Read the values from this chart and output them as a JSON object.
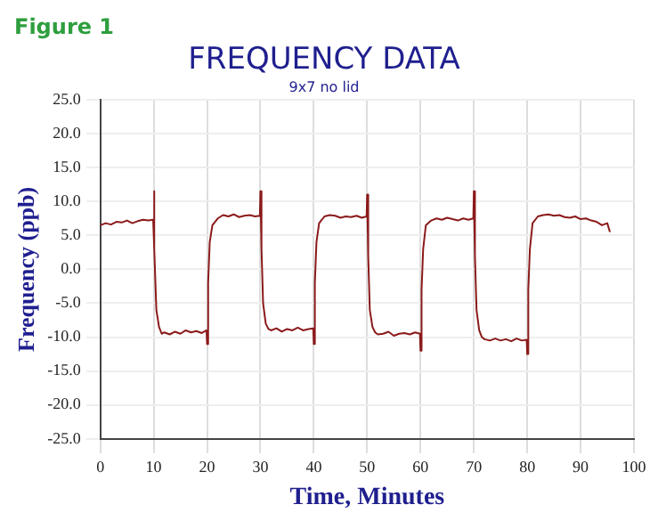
{
  "chart_data": {
    "type": "line",
    "title": "FREQUENCY DATA",
    "subtitle": "9x7 no lid",
    "xlabel": "Time, Minutes",
    "ylabel": "Frequency (ppb)",
    "annotations": [
      "Figure 1"
    ],
    "xlim": [
      0,
      100
    ],
    "xticks": [
      0,
      10,
      20,
      30,
      40,
      50,
      60,
      70,
      80,
      90,
      100
    ],
    "ylim": [
      -25,
      25
    ],
    "yticks": [
      {
        "value": -25,
        "label": "-25.0"
      },
      {
        "value": -20,
        "label": "-20.0"
      },
      {
        "value": -15,
        "label": "-15.0"
      },
      {
        "value": -10,
        "label": "-10.0"
      },
      {
        "value": -5,
        "label": "-5.0"
      },
      {
        "value": 0,
        "label": "0.0"
      },
      {
        "value": 5,
        "label": "5.0"
      },
      {
        "value": 10,
        "label": "10.0"
      },
      {
        "value": 15,
        "label": "15.0"
      },
      {
        "value": 20,
        "label": "20.0"
      },
      {
        "value": 25,
        "label": "25.0"
      }
    ],
    "grid": true,
    "legend": false,
    "marker": "none",
    "line_style": "solid",
    "series": [
      {
        "color": "#8b1a1a",
        "x": [
          0,
          1,
          2,
          3,
          4,
          5,
          6,
          7,
          8,
          9,
          9.9,
          10,
          10.2,
          10.5,
          11,
          11.5,
          12,
          13,
          14,
          15,
          16,
          17,
          18,
          19,
          19.9,
          20,
          20.2,
          20.5,
          21,
          22,
          23,
          24,
          25,
          26,
          27,
          28,
          29,
          29.9,
          30,
          30.2,
          30.5,
          31,
          31.5,
          32,
          33,
          34,
          35,
          36,
          37,
          38,
          39,
          39.9,
          40,
          40.2,
          40.5,
          41,
          42,
          43,
          44,
          45,
          46,
          47,
          48,
          49,
          49.9,
          50,
          50.2,
          50.5,
          51,
          51.5,
          52,
          53,
          54,
          55,
          56,
          57,
          58,
          59,
          59.9,
          60,
          60.2,
          60.5,
          61,
          62,
          63,
          64,
          65,
          66,
          67,
          68,
          69,
          69.9,
          70,
          70.2,
          70.5,
          71,
          71.5,
          72,
          73,
          74,
          75,
          76,
          77,
          78,
          79,
          79.9,
          80,
          80.2,
          80.5,
          81,
          82,
          83,
          84,
          85,
          86,
          87,
          88,
          89,
          90,
          91,
          92,
          93,
          94,
          95,
          95.5
        ],
        "values": [
          6.5,
          6.8,
          6.6,
          7,
          6.9,
          7.2,
          6.8,
          7.1,
          7.3,
          7.2,
          7.3,
          11.5,
          3,
          -6,
          -8.5,
          -9.5,
          -9.3,
          -9.6,
          -9.2,
          -9.5,
          -9,
          -9.3,
          -9.1,
          -9.4,
          -9,
          -11,
          -2,
          4,
          6.5,
          7.5,
          8,
          7.8,
          8.1,
          7.7,
          7.9,
          8,
          7.8,
          7.9,
          11.5,
          3,
          -5,
          -8,
          -8.8,
          -9,
          -8.7,
          -9.2,
          -8.8,
          -9,
          -8.6,
          -9,
          -8.8,
          -8.7,
          -11,
          -2,
          4,
          6.8,
          7.8,
          8,
          7.9,
          7.6,
          7.8,
          7.7,
          7.9,
          7.6,
          7.8,
          11,
          2,
          -6,
          -8.5,
          -9.3,
          -9.6,
          -9.5,
          -9.2,
          -9.8,
          -9.5,
          -9.4,
          -9.6,
          -9.3,
          -9.5,
          -12,
          -3,
          3,
          6.5,
          7.2,
          7.5,
          7.3,
          7.6,
          7.4,
          7.2,
          7.5,
          7.3,
          7.5,
          11.5,
          2,
          -6,
          -9,
          -10,
          -10.3,
          -10.5,
          -10.2,
          -10.5,
          -10.3,
          -10.6,
          -10.2,
          -10.5,
          -10.4,
          -12.5,
          -3,
          3,
          6.8,
          7.8,
          8,
          8.1,
          7.9,
          8,
          7.7,
          7.6,
          7.8,
          7.4,
          7.5,
          7.2,
          7,
          6.5,
          6.8,
          5.5
        ]
      }
    ]
  }
}
